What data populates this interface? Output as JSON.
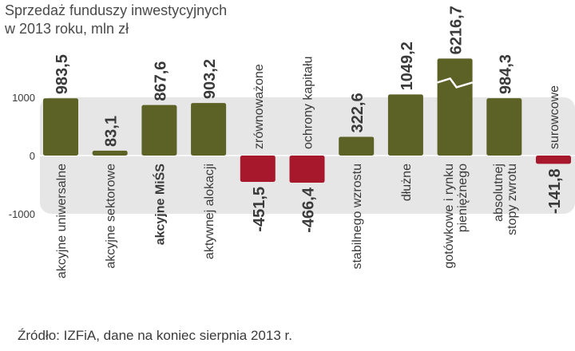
{
  "title_lines": [
    "Sprzedaż funduszy inwestycyjnych",
    "w 2013 roku, mln zł"
  ],
  "source": "Źródło: IZFiA, dane na koniec sierpnia 2013 r.",
  "colors": {
    "positive": "#5c6126",
    "negative": "#a8182c",
    "band": "#e6e6e6",
    "text": "#3a3a3a"
  },
  "chart_data": {
    "type": "bar",
    "title": "Sprzedaż funduszy inwestycyjnych w 2013 roku, mln zł",
    "categories": [
      [
        "akcyjne uniwersalne"
      ],
      [
        "akcyjne sektorowe"
      ],
      [
        "akcyjne MiŚS"
      ],
      [
        "aktywnej alokacji"
      ],
      [
        "zrównoważone"
      ],
      [
        "ochrony kapitału"
      ],
      [
        "stabilnego wzrostu"
      ],
      [
        "dłużne"
      ],
      [
        "gotówkowe i rynku",
        "pieniężnego"
      ],
      [
        "absolutnej",
        "stopy zwrotu"
      ],
      [
        "surowcowe"
      ]
    ],
    "values": [
      983.5,
      83.1,
      867.6,
      903.2,
      -451.5,
      -466.4,
      322.6,
      1049.2,
      6216.7,
      984.3,
      -141.8
    ],
    "value_labels": [
      "983,5",
      "83,1",
      "867,6",
      "903,2",
      "-451,5",
      "-466,4",
      "322,6",
      "1049,2",
      "6216,7",
      "984,3",
      "-141,8"
    ],
    "bold_categories": [
      2
    ],
    "axis_break_index": 8,
    "yticks": [
      1000,
      0,
      -1000
    ],
    "ytick_labels": [
      "1000",
      "0",
      "-1000"
    ],
    "ylim": [
      -1000,
      1000
    ],
    "grid": false,
    "legend": "none"
  }
}
